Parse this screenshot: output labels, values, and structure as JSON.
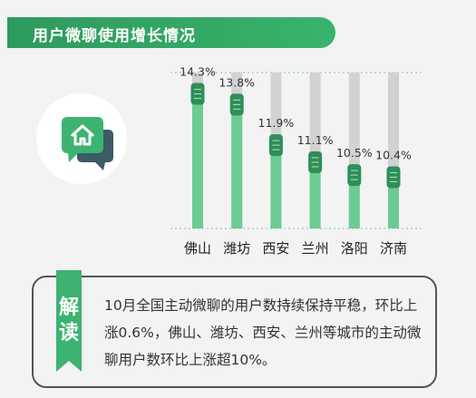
{
  "header": {
    "title": "用户微聊使用增长情况"
  },
  "icon": {
    "name": "chat-house-icon",
    "bubble_color": "#3cb371",
    "back_color": "#3b5b66"
  },
  "chart_data": {
    "type": "bar",
    "title": "",
    "categories": [
      "佛山",
      "潍坊",
      "西安",
      "兰州",
      "洛阳",
      "济南"
    ],
    "values": [
      14.3,
      13.8,
      11.9,
      11.1,
      10.5,
      10.4
    ],
    "value_labels": [
      "14.3%",
      "13.8%",
      "11.9%",
      "11.1%",
      "10.5%",
      "10.4%"
    ],
    "unit": "%",
    "xlabel": "",
    "ylabel": "",
    "ylim": [
      8,
      15.3
    ],
    "grid": true,
    "colors": {
      "bar": "#6ccb92",
      "track": "#d2d2d2",
      "handle": "#2e8f58",
      "grid": "#8fd4ad"
    }
  },
  "note": {
    "label": "解读",
    "text": "10月全国主动微聊的用户数持续保持平稳，环比上涨0.6%，佛山、潍坊、西安、兰州等城市的主动微聊用户数环比上涨超10%。"
  }
}
